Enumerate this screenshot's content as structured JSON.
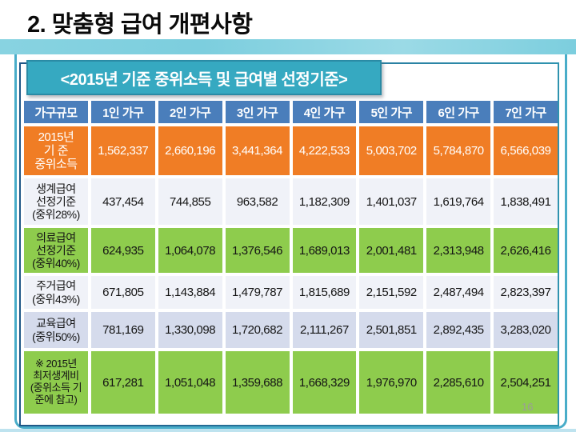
{
  "slide": {
    "title": "2. 맞춤형 급여 개편사항",
    "box_title": "<2015년 기준 중위소득 및 급여별 선정기준>",
    "page_number": "16"
  },
  "colors": {
    "header_blue": "#4a7ebb",
    "median_income_orange": "#f07d25",
    "benefit_green": "#8ecc4d",
    "light_row": "#f0f2f8",
    "lavender_row": "#d5dbec",
    "subtitle_teal": "#36a9c1",
    "subtitle_border": "#2a8ba5",
    "top_band_blue": "#84d0df",
    "outer_frame_teal": "#49adc9",
    "inner_frame_navy": "#1f5787",
    "inner_frame_teal": "#2f93af"
  },
  "table": {
    "header": [
      "가구규모",
      "1인 가구",
      "2인 가구",
      "3인 가구",
      "4인 가구",
      "5인 가구",
      "6인 가구",
      "7인 가구"
    ],
    "rows": [
      {
        "label": "2015년\n기  준\n중위소득",
        "tone": "orange",
        "values": [
          "1,562,337",
          "2,660,196",
          "3,441,364",
          "4,222,533",
          "5,003,702",
          "5,784,870",
          "6,566,039"
        ]
      },
      {
        "label": "생계급여\n선정기준\n(중위28%)",
        "tone": "light",
        "values": [
          "437,454",
          "744,855",
          "963,582",
          "1,182,309",
          "1,401,037",
          "1,619,764",
          "1,838,491"
        ]
      },
      {
        "label": "의료급여\n선정기준\n(중위40%)",
        "tone": "green",
        "values": [
          "624,935",
          "1,064,078",
          "1,376,546",
          "1,689,013",
          "2,001,481",
          "2,313,948",
          "2,626,416"
        ]
      },
      {
        "label": "주거급여\n(중위43%)",
        "tone": "light",
        "values": [
          "671,805",
          "1,143,884",
          "1,479,787",
          "1,815,689",
          "2,151,592",
          "2,487,494",
          "2,823,397"
        ]
      },
      {
        "label": "교육급여\n(중위50%)",
        "tone": "lavender",
        "values": [
          "781,169",
          "1,330,098",
          "1,720,682",
          "2,111,267",
          "2,501,851",
          "2,892,435",
          "3,283,020"
        ]
      },
      {
        "label": "※ 2015년\n최저생계비\n(중위소득 기\n준에 참고)",
        "tone": "green",
        "values": [
          "617,281",
          "1,051,048",
          "1,359,688",
          "1,668,329",
          "1,976,970",
          "2,285,610",
          "2,504,251"
        ]
      }
    ]
  }
}
